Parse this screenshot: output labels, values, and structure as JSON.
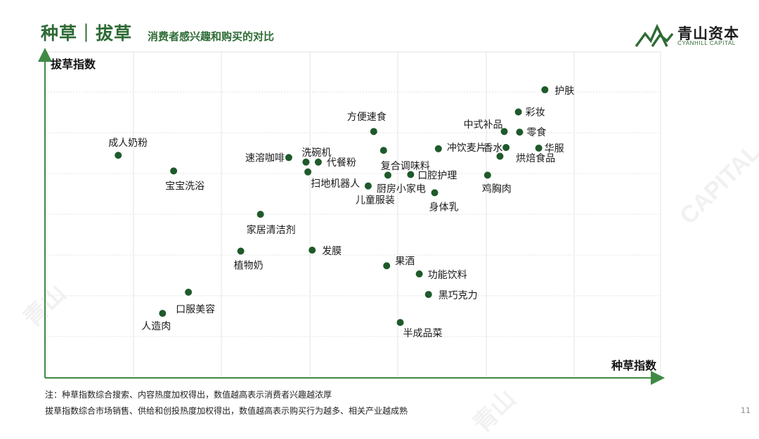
{
  "header": {
    "title": "种草｜拔草",
    "subtitle": "消费者感兴趣和购买的对比"
  },
  "logo": {
    "name_cn": "青山资本",
    "name_en": "CYANHILL CAPITAL",
    "watermark_cn": "青山",
    "watermark_en": "CAPITAL"
  },
  "colors": {
    "accent": "#2e6b35",
    "point": "#1e5a2a",
    "grid": "#e3e3e3",
    "axis": "#3f8a45"
  },
  "chart_data": {
    "type": "scatter",
    "xlabel": "种草指数",
    "ylabel": "拔草指数",
    "grid": true,
    "xlim": [
      0,
      100
    ],
    "ylim": [
      0,
      100
    ],
    "points": [
      {
        "label": "护肤",
        "x": 81.2,
        "y": 88.4
      },
      {
        "label": "彩妆",
        "x": 76.9,
        "y": 81.6
      },
      {
        "label": "中式补品",
        "x": 74.6,
        "y": 75.6
      },
      {
        "label": "零食",
        "x": 77.1,
        "y": 75.4
      },
      {
        "label": "华服",
        "x": 80.2,
        "y": 70.5
      },
      {
        "label": "烘焙食品",
        "x": 74.9,
        "y": 70.7
      },
      {
        "label": "香水",
        "x": 73.9,
        "y": 68.0
      },
      {
        "label": "鸡胸肉",
        "x": 71.9,
        "y": 62.2
      },
      {
        "label": "方便速食",
        "x": 53.4,
        "y": 75.6
      },
      {
        "label": "冲饮麦片",
        "x": 63.9,
        "y": 70.3
      },
      {
        "label": "复合调味料",
        "x": 55.0,
        "y": 69.8
      },
      {
        "label": "口腔护理",
        "x": 59.4,
        "y": 62.4
      },
      {
        "label": "厨房小家电",
        "x": 55.7,
        "y": 62.2
      },
      {
        "label": "儿童服装",
        "x": 52.5,
        "y": 58.9
      },
      {
        "label": "身体乳",
        "x": 63.3,
        "y": 56.8
      },
      {
        "label": "速溶咖啡",
        "x": 39.6,
        "y": 67.6
      },
      {
        "label": "洗碗机",
        "x": 42.4,
        "y": 66.2
      },
      {
        "label": "代餐粉",
        "x": 44.4,
        "y": 66.2
      },
      {
        "label": "扫地机器人",
        "x": 42.7,
        "y": 63.2
      },
      {
        "label": "成人奶粉",
        "x": 11.9,
        "y": 68.3
      },
      {
        "label": "宝宝洗浴",
        "x": 20.9,
        "y": 63.5
      },
      {
        "label": "家居清洁剂",
        "x": 35.0,
        "y": 50.2
      },
      {
        "label": "发膜",
        "x": 43.4,
        "y": 39.2
      },
      {
        "label": "植物奶",
        "x": 31.8,
        "y": 38.9
      },
      {
        "label": "果酒",
        "x": 55.5,
        "y": 34.4
      },
      {
        "label": "功能饮料",
        "x": 60.8,
        "y": 31.9
      },
      {
        "label": "黑巧克力",
        "x": 62.3,
        "y": 25.6
      },
      {
        "label": "口服美容",
        "x": 23.3,
        "y": 26.3
      },
      {
        "label": "人造肉",
        "x": 19.1,
        "y": 19.8
      },
      {
        "label": "半成品菜",
        "x": 57.7,
        "y": 17.0
      }
    ]
  },
  "notes": {
    "line1": "注：种草指数综合搜索、内容热度加权得出，数值越高表示消费者兴趣越浓厚",
    "line2": "拔草指数综合市场销售、供给和创投热度加权得出，数值越高表示购买行为越多、相关产业越成熟"
  },
  "page_number": "11"
}
